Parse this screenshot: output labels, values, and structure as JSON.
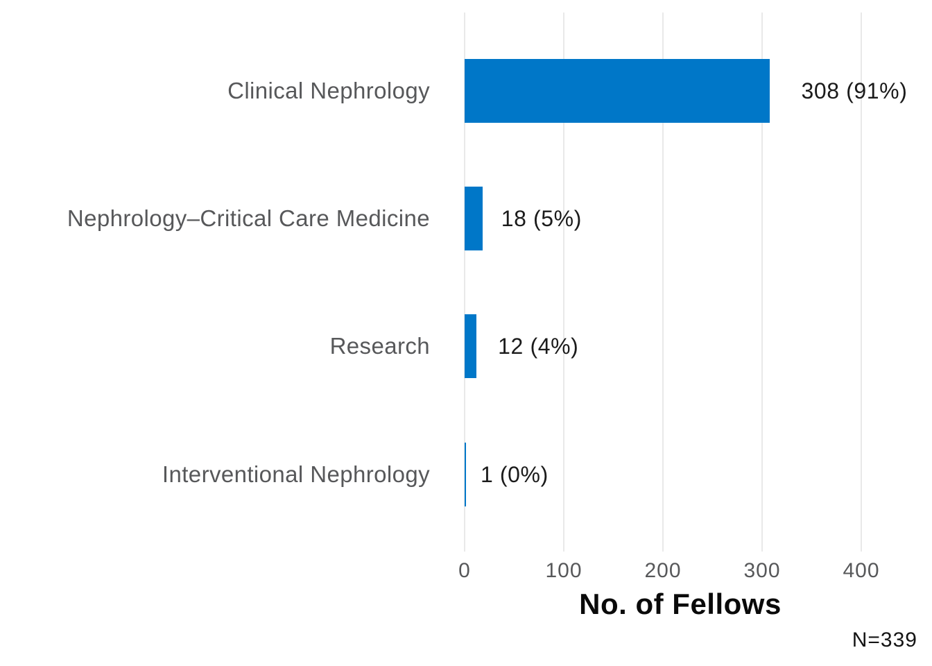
{
  "chart_data": {
    "type": "bar",
    "orientation": "horizontal",
    "title": "",
    "xlabel": "No. of Fellows",
    "ylabel": "",
    "categories": [
      "Clinical Nephrology",
      "Nephrology–Critical Care Medicine",
      "Research",
      "Interventional Nephrology"
    ],
    "values": [
      308,
      18,
      12,
      1
    ],
    "value_labels": [
      "308 (91%)",
      "18 (5%)",
      "12 (4%)",
      "1 (0%)"
    ],
    "xlim": [
      0,
      400
    ],
    "xticks": [
      0,
      100,
      200,
      300,
      400
    ],
    "grid": "vertical-only",
    "legend": "none",
    "annotation": "N=339",
    "colors": {
      "bar": "#0077c8",
      "gridline": "#e9e9e9",
      "category_text": "#57585a",
      "value_text": "#1b1b1b",
      "axis_title_text": "#0a0a0a"
    }
  }
}
